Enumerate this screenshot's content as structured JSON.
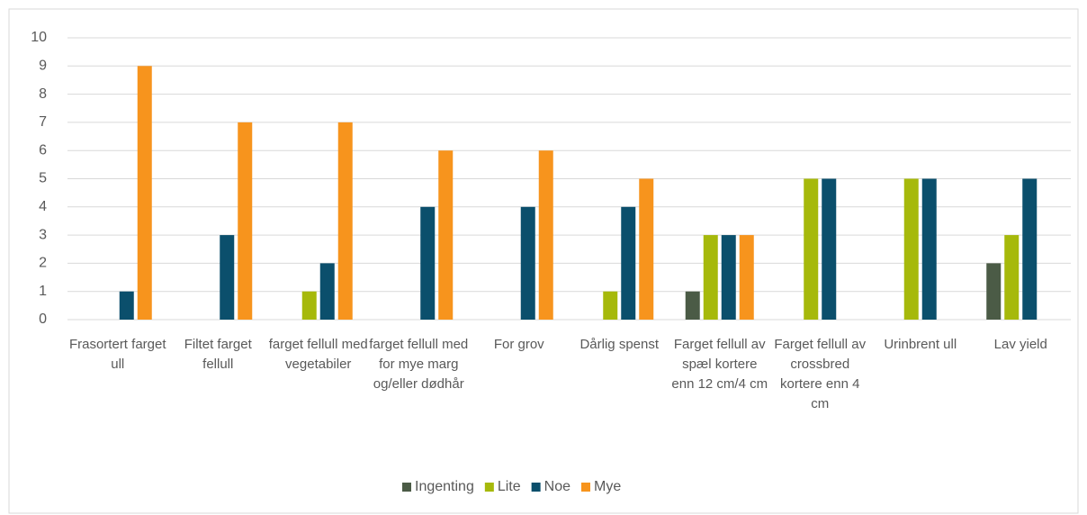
{
  "chart_data": {
    "type": "bar",
    "categories": [
      "Frasortert farget ull",
      "Filtet farget fellull",
      "farget fellull med vegetabiler",
      "farget fellull med for mye marg og/eller dødhår",
      "For grov",
      "Dårlig spenst",
      "Farget fellull av spæl kortere enn 12 cm/4 cm",
      "Farget fellull av crossbred kortere enn 4 cm",
      "Urinbrent ull",
      "Lav yield"
    ],
    "series": [
      {
        "name": "Ingenting",
        "color": "#4b5b46",
        "values": [
          0,
          0,
          0,
          0,
          0,
          0,
          1,
          0,
          0,
          2
        ]
      },
      {
        "name": "Lite",
        "color": "#a6b90b",
        "values": [
          0,
          0,
          1,
          0,
          0,
          1,
          3,
          5,
          5,
          3
        ]
      },
      {
        "name": "Noe",
        "color": "#0b4f6c",
        "values": [
          1,
          3,
          2,
          4,
          4,
          4,
          3,
          5,
          5,
          5
        ]
      },
      {
        "name": "Mye",
        "color": "#f7941d",
        "values": [
          9,
          7,
          7,
          6,
          6,
          5,
          3,
          0,
          0,
          0
        ]
      }
    ],
    "ylim": [
      0,
      10
    ],
    "yticks": [
      0,
      1,
      2,
      3,
      4,
      5,
      6,
      7,
      8,
      9,
      10
    ],
    "grid": true,
    "legend": "bottom"
  }
}
